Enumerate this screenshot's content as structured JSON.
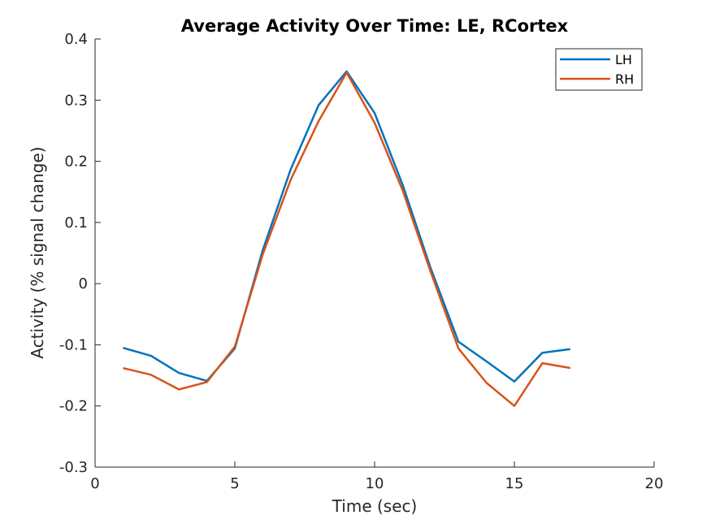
{
  "chart_data": {
    "type": "line",
    "title": "Average Activity Over Time: LE, RCortex",
    "xlabel": "Time (sec)",
    "ylabel": "Activity (% signal change)",
    "xlim": [
      0,
      20
    ],
    "ylim": [
      -0.3,
      0.4
    ],
    "xticks": [
      0,
      5,
      10,
      15,
      20
    ],
    "xtick_labels": [
      "0",
      "5",
      "10",
      "15",
      "20"
    ],
    "yticks": [
      -0.3,
      -0.2,
      -0.1,
      0,
      0.1,
      0.2,
      0.3,
      0.4
    ],
    "ytick_labels": [
      "-0.3",
      "-0.2",
      "-0.1",
      "0",
      "0.1",
      "0.2",
      "0.3",
      "0.4"
    ],
    "grid": false,
    "legend_position": "top-right",
    "x": [
      1,
      2,
      3,
      4,
      5,
      6,
      7,
      8,
      9,
      10,
      11,
      12,
      13,
      14,
      15,
      16,
      17
    ],
    "series": [
      {
        "name": "LH",
        "color": "#0072BD",
        "values": [
          -0.105,
          -0.118,
          -0.146,
          -0.159,
          -0.106,
          0.055,
          0.187,
          0.292,
          0.347,
          0.279,
          0.162,
          0.026,
          -0.095,
          -0.127,
          -0.16,
          -0.113,
          -0.107
        ]
      },
      {
        "name": "RH",
        "color": "#D95319",
        "values": [
          -0.138,
          -0.149,
          -0.173,
          -0.161,
          -0.103,
          0.048,
          0.17,
          0.266,
          0.345,
          0.263,
          0.153,
          0.02,
          -0.106,
          -0.162,
          -0.2,
          -0.13,
          -0.138
        ]
      }
    ]
  }
}
